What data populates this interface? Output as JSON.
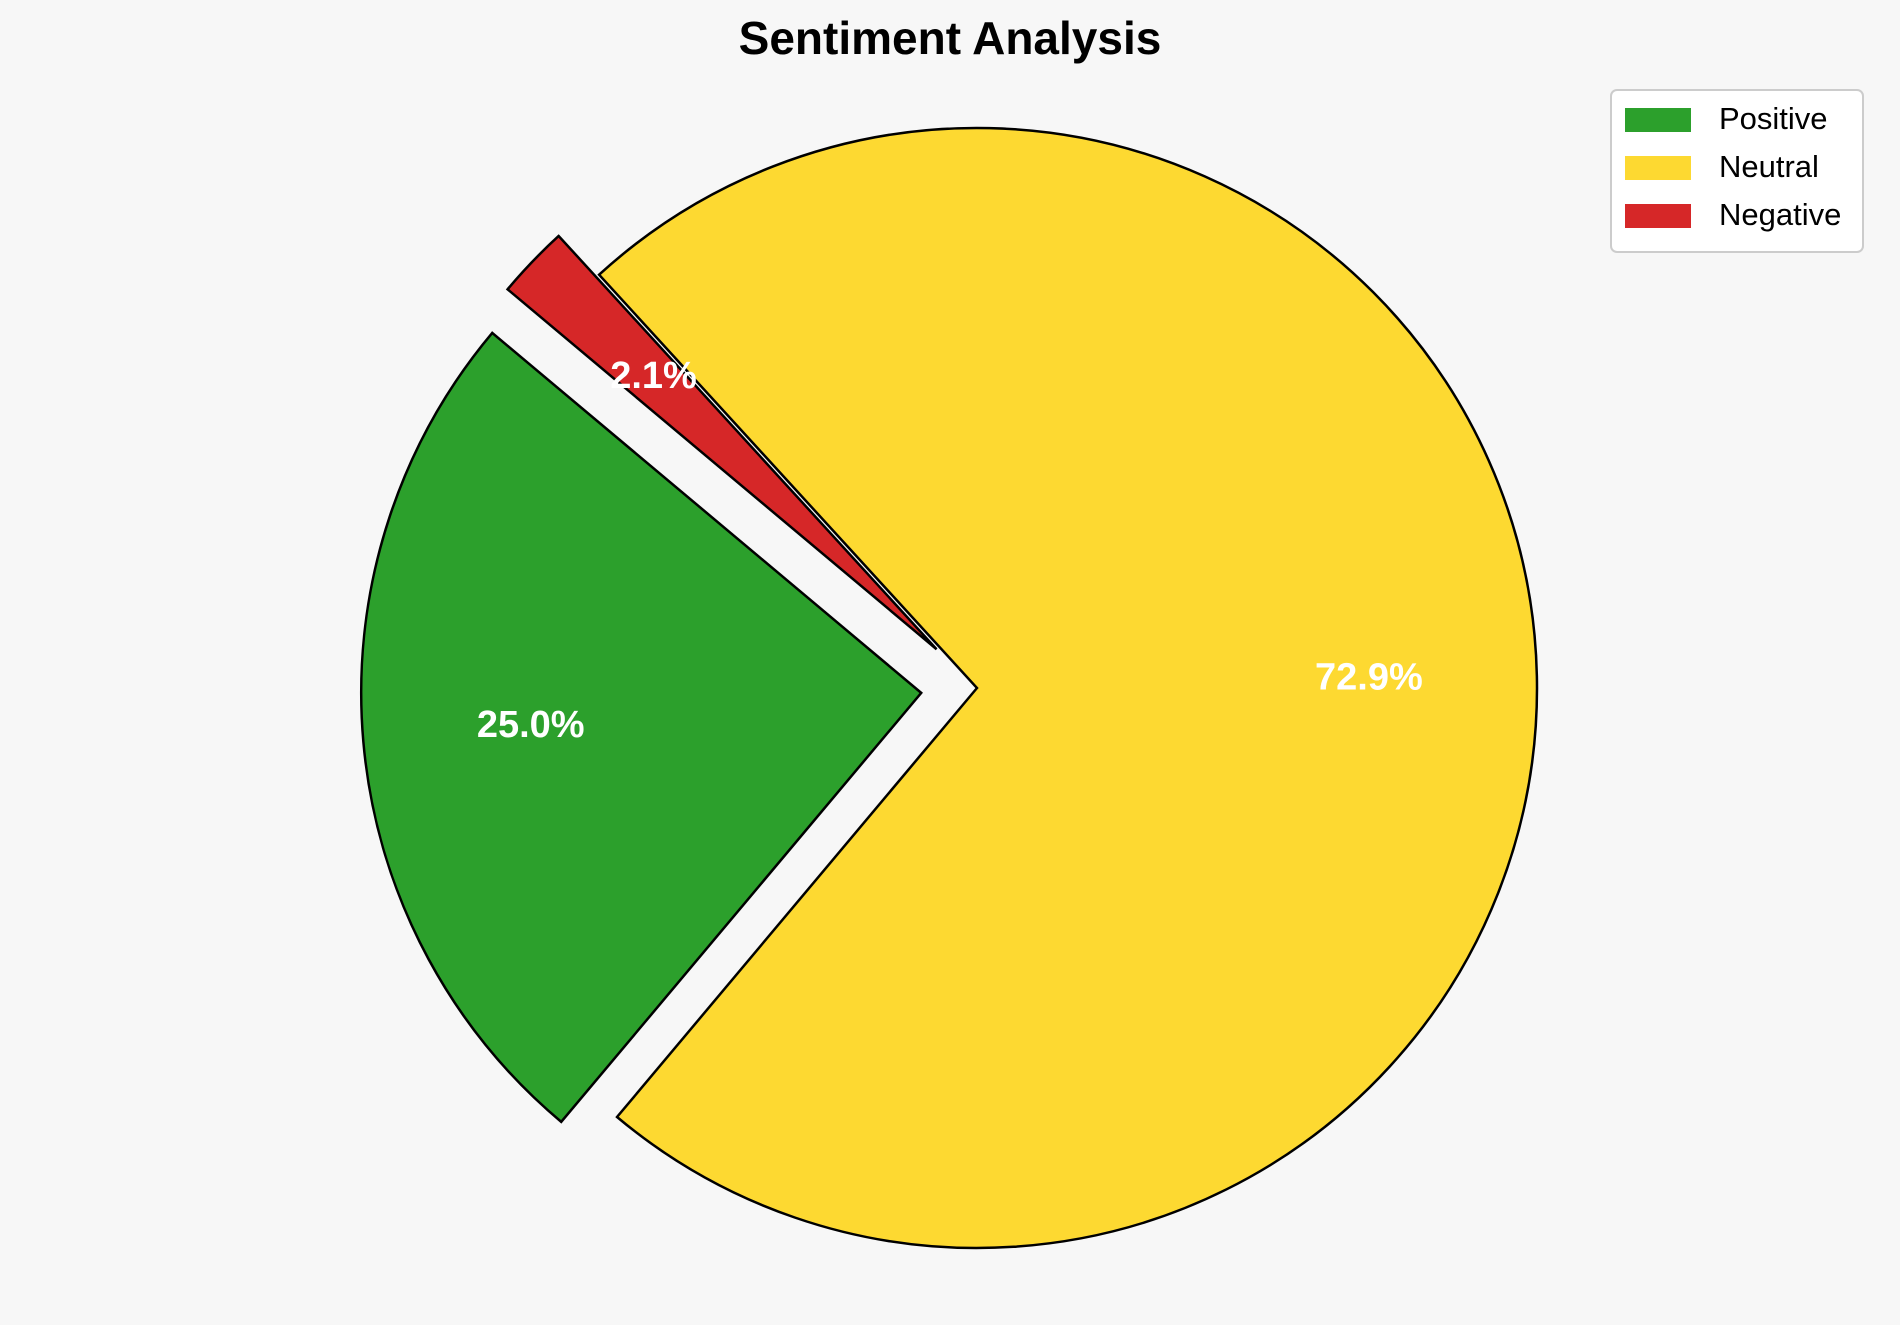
{
  "chart_data": {
    "type": "pie",
    "title": "Sentiment Analysis",
    "slices": [
      {
        "label": "Positive",
        "value": 25.0,
        "display": "25.0%",
        "color": "#2ca02c",
        "exploded": true
      },
      {
        "label": "Neutral",
        "value": 72.9,
        "display": "72.9%",
        "color": "#fdd931",
        "exploded": false
      },
      {
        "label": "Negative",
        "value": 2.1,
        "display": "2.1%",
        "color": "#d62728",
        "exploded": true
      }
    ],
    "start_angle_deg": 140,
    "direction": "counterclockwise",
    "legend_position": "top-right",
    "edge_color": "#000000",
    "label_color": "#ffffff",
    "background": "#f7f7f7"
  }
}
